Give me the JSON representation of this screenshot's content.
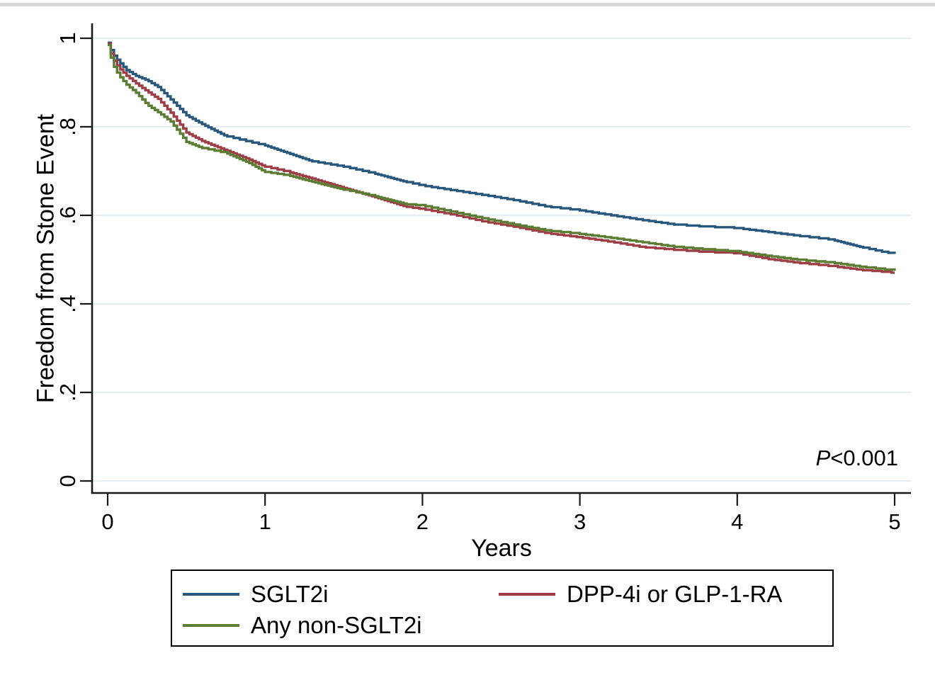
{
  "chart_data": {
    "type": "line",
    "subtype": "kaplan-meier-step",
    "title": "",
    "xlabel": "Years",
    "ylabel": "Freedom from Stone Event",
    "xlim": [
      0,
      5
    ],
    "ylim": [
      0,
      1
    ],
    "xticks": {
      "values": [
        0,
        1,
        2,
        3,
        4,
        5
      ],
      "labels": [
        "0",
        "1",
        "2",
        "3",
        "4",
        "5"
      ]
    },
    "yticks": {
      "values": [
        0,
        0.2,
        0.4,
        0.6,
        0.8,
        1
      ],
      "labels": [
        "0",
        ".2",
        ".4",
        ".6",
        ".8",
        "1"
      ]
    },
    "grid": "horizontal",
    "gridline_color": "#e7eef1",
    "axis_color": "#1a1a1a",
    "annotation": {
      "p_label": "P",
      "p_value": "<0.001"
    },
    "legend_position": "bottom-boxed",
    "series": [
      {
        "name": "SGLT2i",
        "color": "#28577d",
        "x": [
          0,
          0.03,
          0.07,
          0.12,
          0.18,
          0.25,
          0.32,
          0.4,
          0.5,
          0.6,
          0.75,
          0.9,
          1.0,
          1.15,
          1.3,
          1.5,
          1.7,
          1.9,
          2.0,
          2.2,
          2.4,
          2.6,
          2.8,
          3.0,
          3.2,
          3.4,
          3.6,
          3.8,
          4.0,
          4.2,
          4.4,
          4.6,
          4.8,
          4.9,
          5.0
        ],
        "y": [
          0.99,
          0.965,
          0.947,
          0.928,
          0.915,
          0.905,
          0.89,
          0.862,
          0.826,
          0.806,
          0.779,
          0.766,
          0.758,
          0.74,
          0.722,
          0.71,
          0.694,
          0.675,
          0.667,
          0.656,
          0.645,
          0.633,
          0.619,
          0.611,
          0.6,
          0.589,
          0.579,
          0.574,
          0.571,
          0.562,
          0.553,
          0.545,
          0.527,
          0.519,
          0.513
        ]
      },
      {
        "name": "DPP-4i or GLP-1-RA",
        "color": "#9d3e45",
        "x": [
          0,
          0.03,
          0.07,
          0.12,
          0.18,
          0.25,
          0.32,
          0.4,
          0.5,
          0.6,
          0.75,
          0.9,
          1.0,
          1.15,
          1.3,
          1.5,
          1.7,
          1.9,
          2.0,
          2.2,
          2.4,
          2.6,
          2.8,
          3.0,
          3.2,
          3.4,
          3.6,
          3.8,
          4.0,
          4.2,
          4.4,
          4.6,
          4.8,
          5.0
        ],
        "y": [
          0.988,
          0.955,
          0.933,
          0.915,
          0.898,
          0.88,
          0.863,
          0.832,
          0.787,
          0.768,
          0.747,
          0.726,
          0.71,
          0.698,
          0.683,
          0.662,
          0.641,
          0.619,
          0.614,
          0.601,
          0.585,
          0.573,
          0.559,
          0.55,
          0.54,
          0.528,
          0.522,
          0.517,
          0.514,
          0.501,
          0.492,
          0.485,
          0.476,
          0.47
        ]
      },
      {
        "name": "Any non-SGLT2i",
        "color": "#5b7c33",
        "x": [
          0,
          0.03,
          0.07,
          0.12,
          0.18,
          0.25,
          0.32,
          0.4,
          0.5,
          0.6,
          0.75,
          0.9,
          1.0,
          1.15,
          1.3,
          1.5,
          1.7,
          1.9,
          2.0,
          2.2,
          2.4,
          2.6,
          2.8,
          3.0,
          3.2,
          3.4,
          3.6,
          3.8,
          4.0,
          4.2,
          4.4,
          4.6,
          4.8,
          5.0
        ],
        "y": [
          0.985,
          0.942,
          0.916,
          0.895,
          0.877,
          0.85,
          0.833,
          0.812,
          0.766,
          0.752,
          0.741,
          0.718,
          0.698,
          0.69,
          0.676,
          0.658,
          0.643,
          0.625,
          0.622,
          0.607,
          0.592,
          0.578,
          0.565,
          0.558,
          0.549,
          0.539,
          0.529,
          0.523,
          0.518,
          0.508,
          0.499,
          0.493,
          0.483,
          0.475
        ]
      }
    ]
  }
}
